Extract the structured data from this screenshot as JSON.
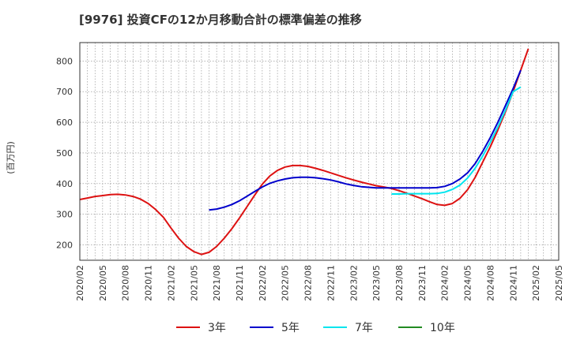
{
  "chart_data": {
    "type": "line",
    "title": "[9976]  投資CFの12か月移動合計の標準偏差の推移",
    "ylabel": "(百万円)",
    "xlabel": "",
    "ylim": [
      150,
      860
    ],
    "yticks": [
      200,
      300,
      400,
      500,
      600,
      700,
      800
    ],
    "xlim": [
      "2020-02",
      "2025-05"
    ],
    "xticks": [
      "2020/02",
      "2020/05",
      "2020/08",
      "2020/11",
      "2021/02",
      "2021/05",
      "2021/08",
      "2021/11",
      "2022/02",
      "2022/05",
      "2022/08",
      "2022/11",
      "2023/02",
      "2023/05",
      "2023/08",
      "2023/11",
      "2024/02",
      "2024/05",
      "2024/08",
      "2024/11",
      "2025/02",
      "2025/05"
    ],
    "grid": true,
    "legend_position": "bottom",
    "series": [
      {
        "name": "3年",
        "color": "#dd1111",
        "points": [
          [
            "2020-02",
            348
          ],
          [
            "2020-03",
            353
          ],
          [
            "2020-04",
            358
          ],
          [
            "2020-05",
            361
          ],
          [
            "2020-06",
            364
          ],
          [
            "2020-07",
            365
          ],
          [
            "2020-08",
            363
          ],
          [
            "2020-09",
            358
          ],
          [
            "2020-10",
            349
          ],
          [
            "2020-11",
            335
          ],
          [
            "2020-12",
            315
          ],
          [
            "2021-01",
            290
          ],
          [
            "2021-02",
            255
          ],
          [
            "2021-03",
            222
          ],
          [
            "2021-04",
            195
          ],
          [
            "2021-05",
            178
          ],
          [
            "2021-06",
            169
          ],
          [
            "2021-07",
            176
          ],
          [
            "2021-08",
            195
          ],
          [
            "2021-09",
            222
          ],
          [
            "2021-10",
            253
          ],
          [
            "2021-11",
            288
          ],
          [
            "2021-12",
            325
          ],
          [
            "2022-01",
            362
          ],
          [
            "2022-02",
            398
          ],
          [
            "2022-03",
            425
          ],
          [
            "2022-04",
            443
          ],
          [
            "2022-05",
            454
          ],
          [
            "2022-06",
            459
          ],
          [
            "2022-07",
            459
          ],
          [
            "2022-08",
            456
          ],
          [
            "2022-09",
            450
          ],
          [
            "2022-10",
            443
          ],
          [
            "2022-11",
            435
          ],
          [
            "2022-12",
            427
          ],
          [
            "2023-01",
            419
          ],
          [
            "2023-02",
            412
          ],
          [
            "2023-03",
            405
          ],
          [
            "2023-04",
            399
          ],
          [
            "2023-05",
            393
          ],
          [
            "2023-06",
            389
          ],
          [
            "2023-07",
            384
          ],
          [
            "2023-08",
            377
          ],
          [
            "2023-09",
            369
          ],
          [
            "2023-10",
            360
          ],
          [
            "2023-11",
            351
          ],
          [
            "2023-12",
            341
          ],
          [
            "2024-01",
            332
          ],
          [
            "2024-02",
            329
          ],
          [
            "2024-03",
            335
          ],
          [
            "2024-04",
            352
          ],
          [
            "2024-05",
            380
          ],
          [
            "2024-06",
            420
          ],
          [
            "2024-07",
            470
          ],
          [
            "2024-08",
            520
          ],
          [
            "2024-09",
            575
          ],
          [
            "2024-10",
            635
          ],
          [
            "2024-11",
            700
          ],
          [
            "2024-12",
            770
          ],
          [
            "2025-01",
            840
          ]
        ]
      },
      {
        "name": "5年",
        "color": "#0000cc",
        "points": [
          [
            "2021-07",
            314
          ],
          [
            "2021-08",
            317
          ],
          [
            "2021-09",
            323
          ],
          [
            "2021-10",
            332
          ],
          [
            "2021-11",
            344
          ],
          [
            "2021-12",
            359
          ],
          [
            "2022-01",
            374
          ],
          [
            "2022-02",
            389
          ],
          [
            "2022-03",
            401
          ],
          [
            "2022-04",
            409
          ],
          [
            "2022-05",
            415
          ],
          [
            "2022-06",
            419
          ],
          [
            "2022-07",
            421
          ],
          [
            "2022-08",
            421
          ],
          [
            "2022-09",
            419
          ],
          [
            "2022-10",
            416
          ],
          [
            "2022-11",
            412
          ],
          [
            "2022-12",
            406
          ],
          [
            "2023-01",
            399
          ],
          [
            "2023-02",
            394
          ],
          [
            "2023-03",
            390
          ],
          [
            "2023-04",
            388
          ],
          [
            "2023-05",
            386
          ],
          [
            "2023-06",
            386
          ],
          [
            "2023-07",
            386
          ],
          [
            "2023-08",
            386
          ],
          [
            "2023-09",
            386
          ],
          [
            "2023-10",
            386
          ],
          [
            "2023-11",
            386
          ],
          [
            "2023-12",
            386
          ],
          [
            "2024-01",
            387
          ],
          [
            "2024-02",
            391
          ],
          [
            "2024-03",
            400
          ],
          [
            "2024-04",
            415
          ],
          [
            "2024-05",
            435
          ],
          [
            "2024-06",
            465
          ],
          [
            "2024-07",
            505
          ],
          [
            "2024-08",
            550
          ],
          [
            "2024-09",
            600
          ],
          [
            "2024-10",
            655
          ],
          [
            "2024-11",
            710
          ],
          [
            "2024-12",
            770
          ]
        ]
      },
      {
        "name": "7年",
        "color": "#00e5ee",
        "points": [
          [
            "2023-07",
            366
          ],
          [
            "2023-08",
            366
          ],
          [
            "2023-09",
            367
          ],
          [
            "2023-10",
            367
          ],
          [
            "2023-11",
            367
          ],
          [
            "2023-12",
            367
          ],
          [
            "2024-01",
            368
          ],
          [
            "2024-02",
            372
          ],
          [
            "2024-03",
            381
          ],
          [
            "2024-04",
            395
          ],
          [
            "2024-05",
            418
          ],
          [
            "2024-06",
            450
          ],
          [
            "2024-07",
            490
          ],
          [
            "2024-08",
            535
          ],
          [
            "2024-09",
            585
          ],
          [
            "2024-10",
            640
          ],
          [
            "2024-11",
            700
          ],
          [
            "2024-12",
            715
          ]
        ]
      },
      {
        "name": "10年",
        "color": "#228b22",
        "points": []
      }
    ]
  }
}
